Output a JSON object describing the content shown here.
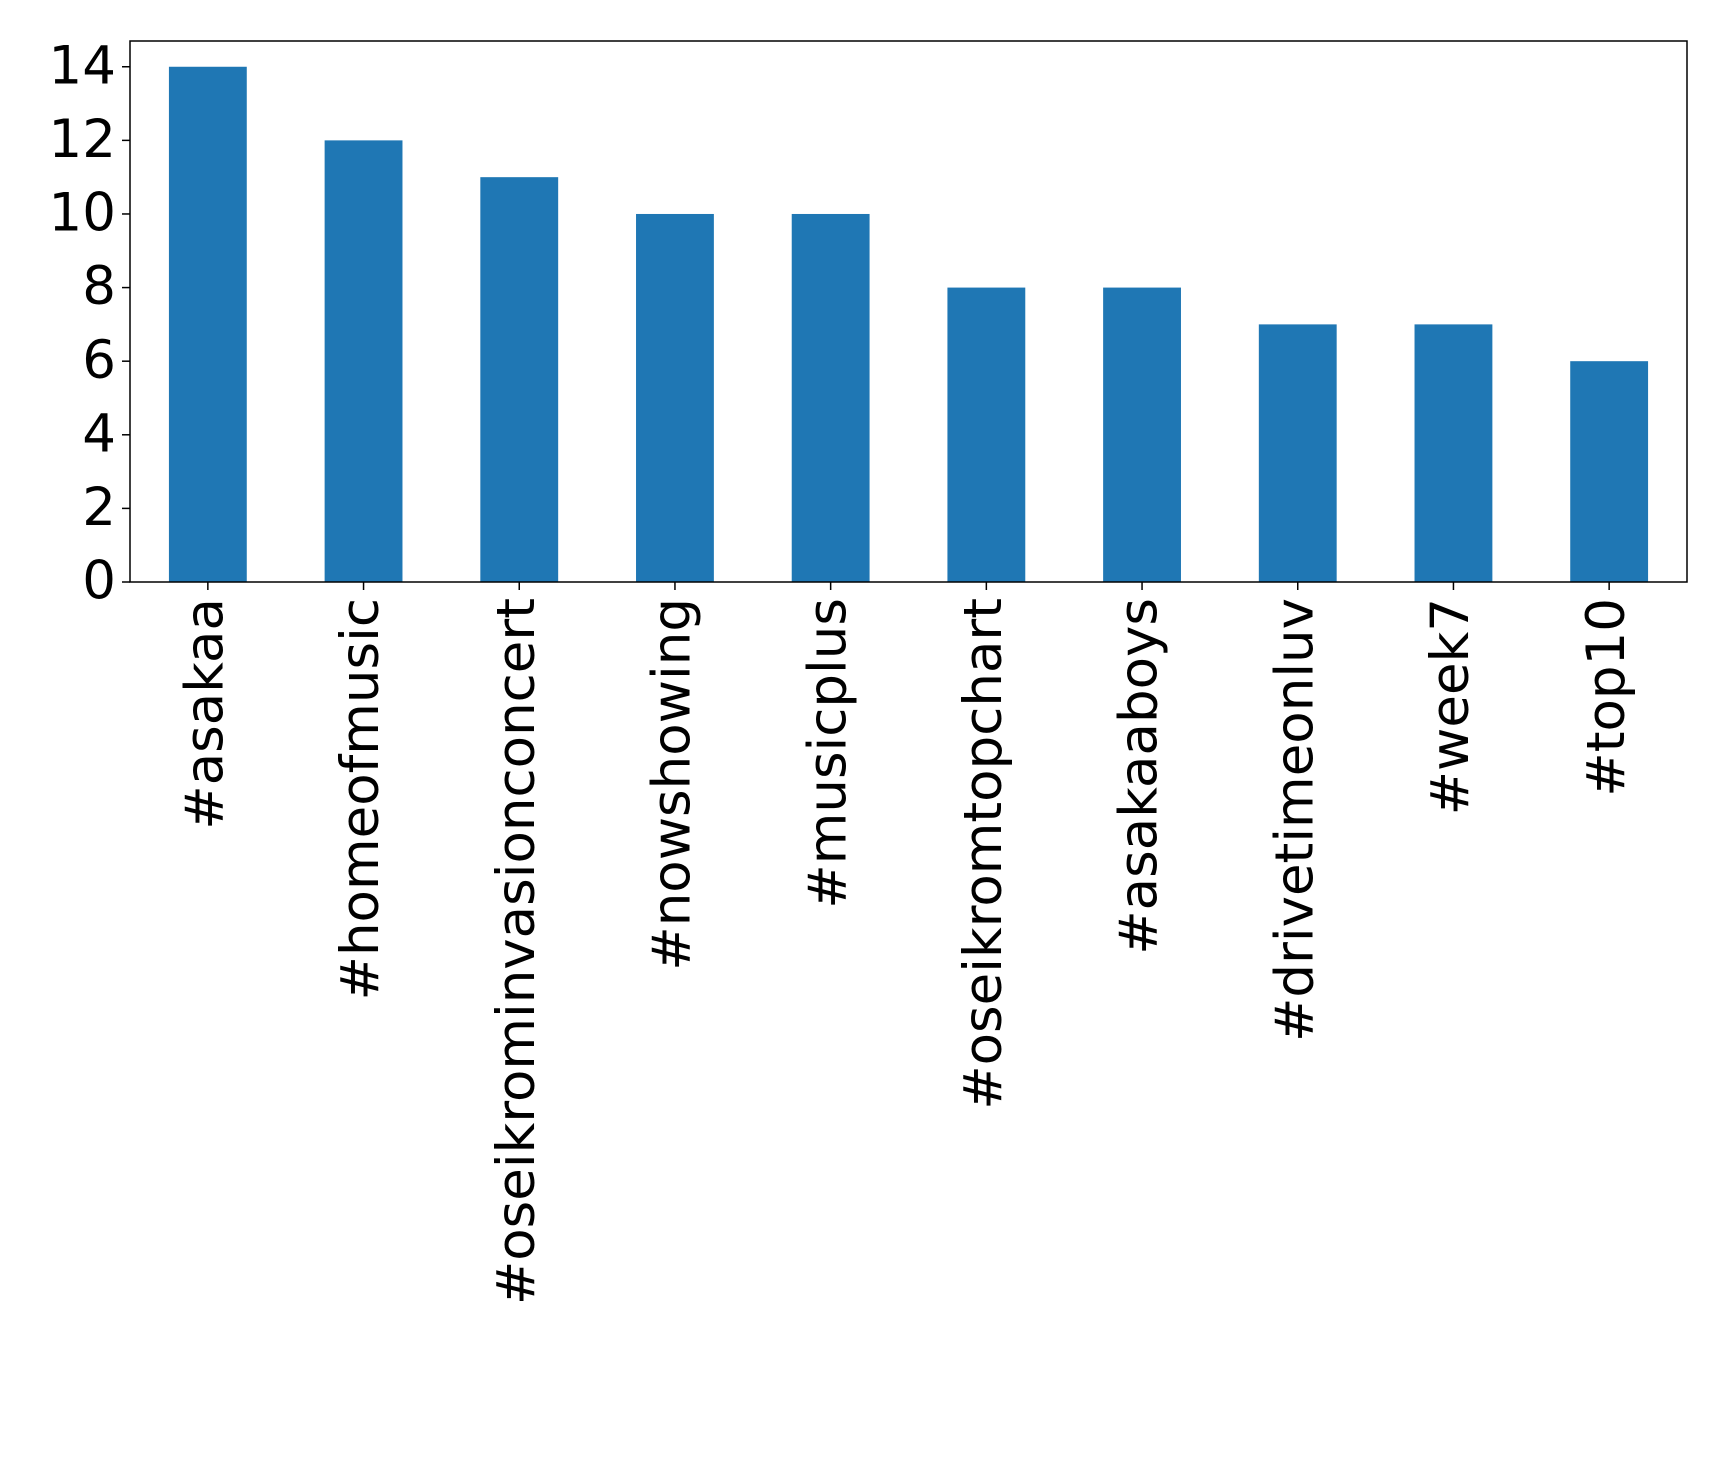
{
  "chart_data": {
    "type": "bar",
    "categories": [
      "#asakaa",
      "#homeofmusic",
      "#oseikrominvasionconcert",
      "#nowshowing",
      "#musicplus",
      "#oseikromtopchart",
      "#asakaaboys",
      "#drivetimeonluv",
      "#week7",
      "#top10"
    ],
    "values": [
      14,
      12,
      11,
      10,
      10,
      8,
      8,
      7,
      7,
      6
    ],
    "color": "#1f77b4",
    "ylim": [
      0,
      14.7
    ],
    "yticks": [
      0,
      2,
      4,
      6,
      8,
      10,
      12,
      14
    ],
    "grid": false
  }
}
